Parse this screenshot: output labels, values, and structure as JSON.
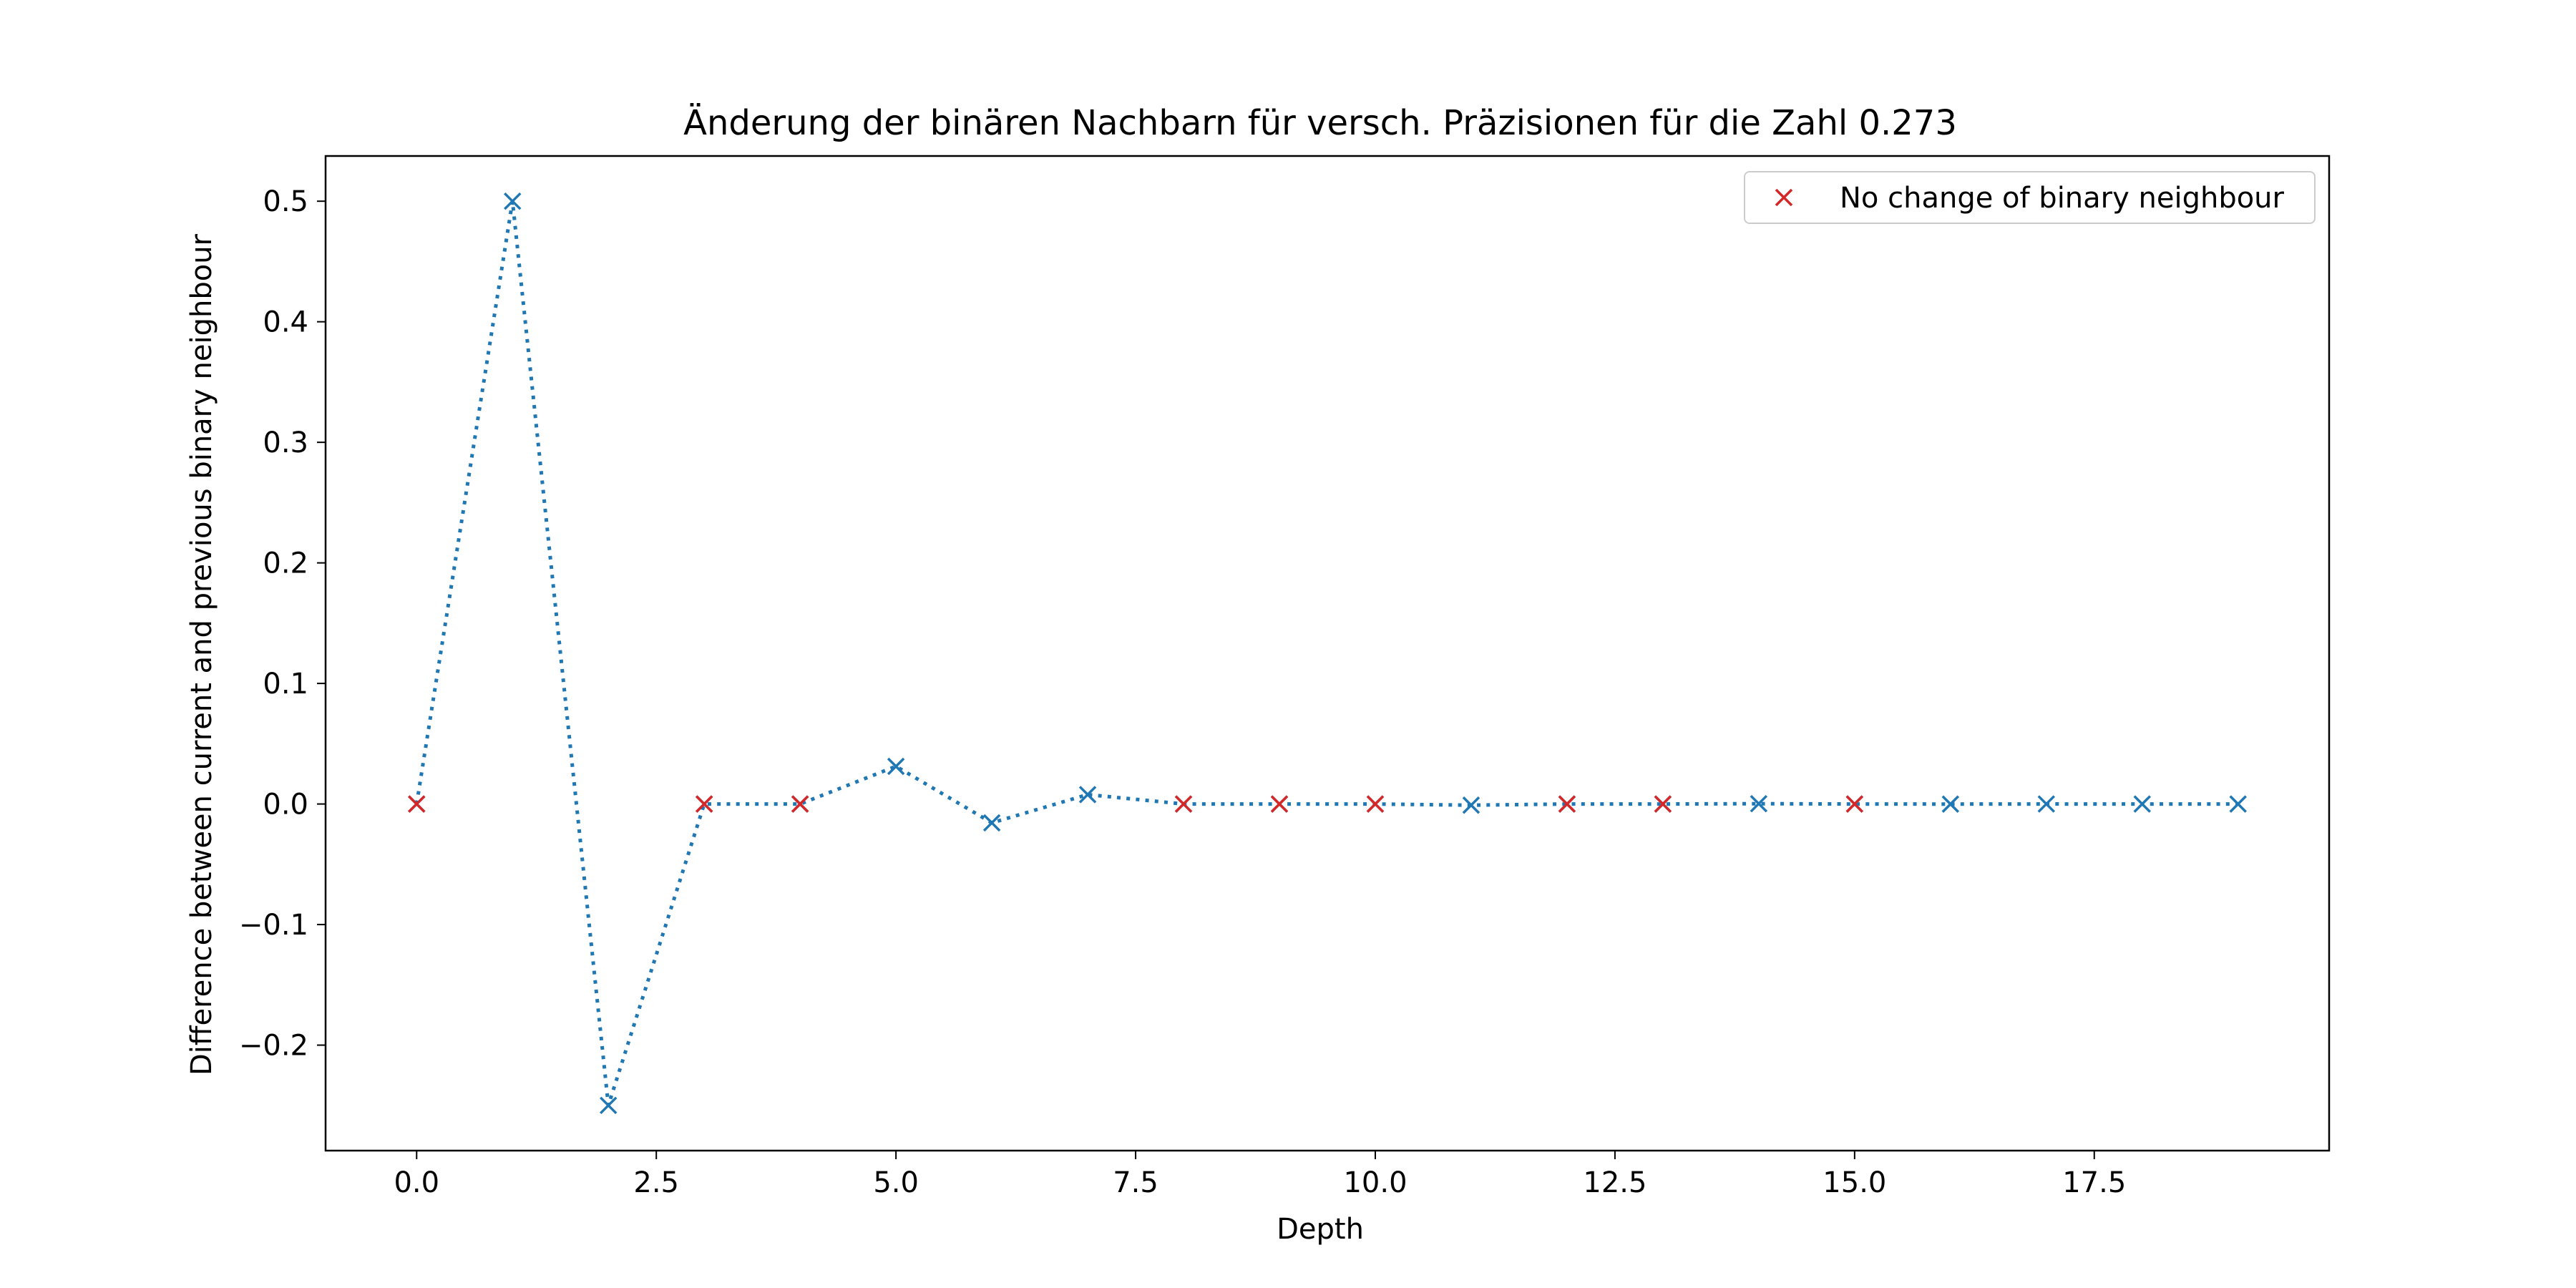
{
  "chart_data": {
    "type": "line",
    "title": "Änderung der binären Nachbarn für versch. Präzisionen für die Zahl 0.273",
    "xlabel": "Depth",
    "ylabel": "Difference between current and previous binary neighbour",
    "xlim": [
      -0.95,
      19.95
    ],
    "ylim": [
      -0.2875,
      0.5375
    ],
    "xticks": [
      0.0,
      2.5,
      5.0,
      7.5,
      10.0,
      12.5,
      15.0,
      17.5
    ],
    "xtick_labels": [
      "0.0",
      "2.5",
      "5.0",
      "7.5",
      "10.0",
      "12.5",
      "15.0",
      "17.5"
    ],
    "yticks": [
      -0.2,
      -0.1,
      0.0,
      0.1,
      0.2,
      0.3,
      0.4,
      0.5
    ],
    "ytick_labels": [
      "−0.2",
      "−0.1",
      "0.0",
      "0.1",
      "0.2",
      "0.3",
      "0.4",
      "0.5"
    ],
    "grid": false,
    "legend_position": "top-right",
    "series": [
      {
        "x": [
          0,
          1,
          2,
          3,
          4,
          5,
          6,
          7,
          8,
          9,
          10,
          11,
          12,
          13,
          14,
          15,
          16,
          17,
          18,
          19
        ],
        "values": [
          0.0,
          0.5,
          -0.25,
          0.0,
          0.0,
          0.03125,
          -0.015625,
          0.0078125,
          0.0,
          0.0,
          0.0,
          -0.0009765625,
          0.0,
          0.0,
          0.000244140625,
          0.0,
          -6.103515625e-05,
          3.0517578125e-05,
          -1.52587890625e-05,
          7.62939453125e-06
        ],
        "color": "#1f77b4",
        "line_style": "dotted",
        "marker": "x"
      },
      {
        "name": "No change of binary neighbour",
        "x": [
          0,
          3,
          4,
          8,
          9,
          10,
          12,
          13,
          15
        ],
        "values": [
          0.0,
          0.0,
          0.0,
          0.0,
          0.0,
          0.0,
          0.0,
          0.0,
          0.0
        ],
        "color": "#d62728",
        "line_style": "none",
        "marker": "x"
      }
    ]
  }
}
